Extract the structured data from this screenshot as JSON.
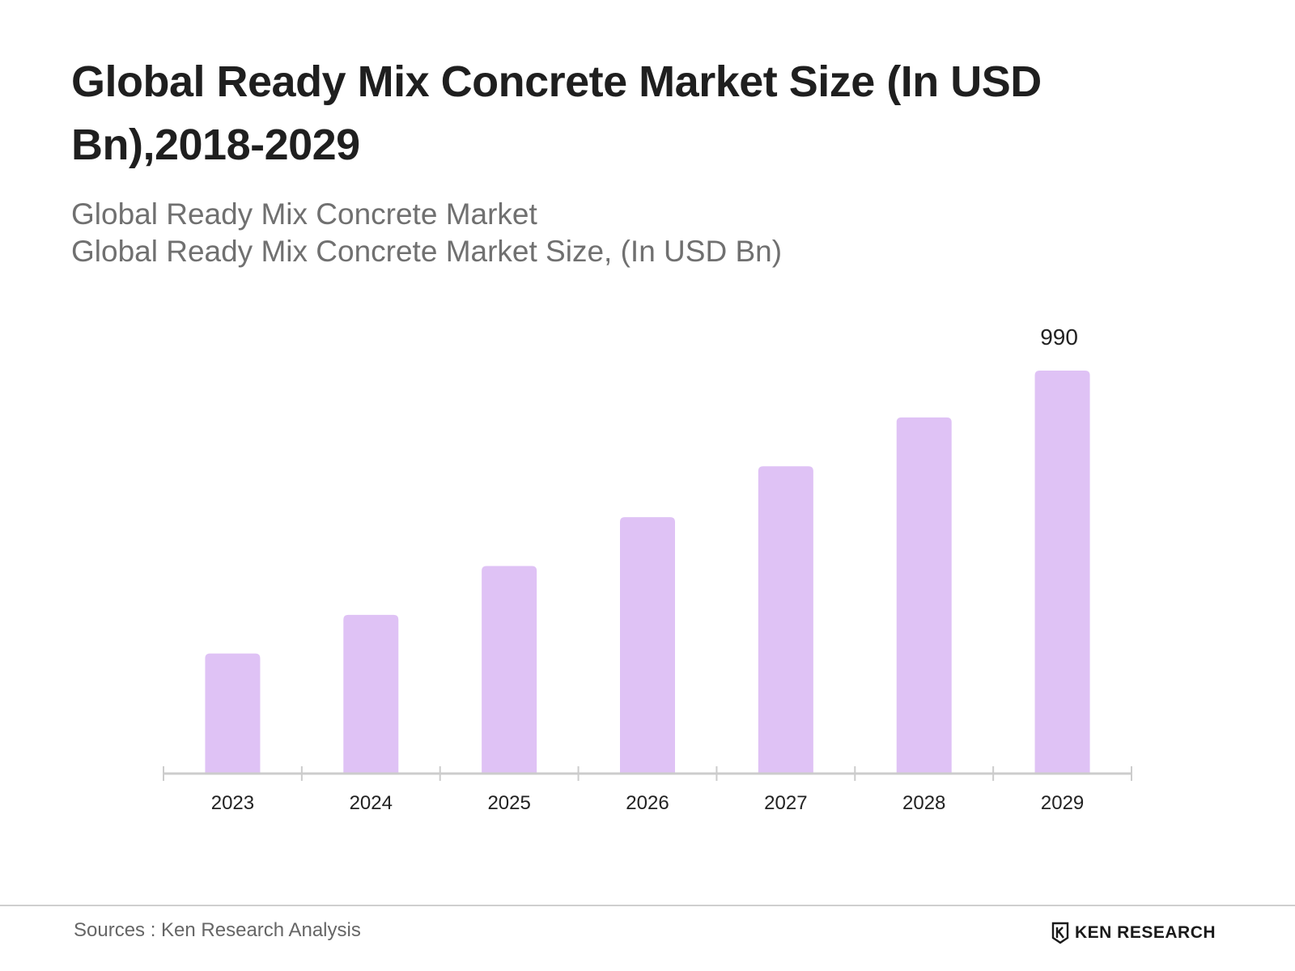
{
  "header": {
    "title": "Global Ready Mix Concrete Market Size (In USD Bn),2018-2029",
    "subtitle_line1": "Global Ready Mix Concrete Market",
    "subtitle_line2": "Global Ready Mix Concrete Market Size, (In USD Bn)"
  },
  "footer": {
    "source": "Sources : Ken Research Analysis",
    "logo_text": "KEN RESEARCH"
  },
  "colors": {
    "bar": "#dfc2f5",
    "axis": "#cccccc"
  },
  "chart_data": {
    "type": "bar",
    "categories": [
      "2023",
      "2024",
      "2025",
      "2026",
      "2027",
      "2028",
      "2029"
    ],
    "values": [
      295,
      390,
      510,
      630,
      755,
      875,
      990
    ],
    "data_labels": [
      null,
      null,
      null,
      null,
      null,
      null,
      "990"
    ],
    "title": "Global Ready Mix Concrete Market Size (In USD Bn),2018-2029",
    "ylabel": "Global Ready Mix Concrete Market Size, (In USD Bn)",
    "ylim": [
      0,
      990
    ],
    "grid": false,
    "legend": "none"
  }
}
